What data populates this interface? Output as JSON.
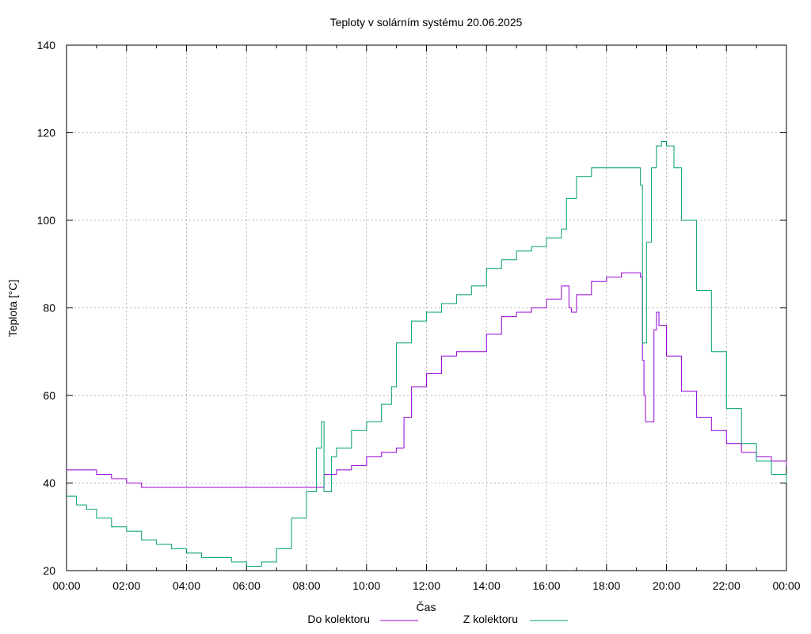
{
  "colors": {
    "series_do": "#9400d3",
    "series_z": "#009e73",
    "grid": "#a0a0a0",
    "axes": "#000000"
  },
  "chart_data": {
    "type": "line",
    "title": "Teploty v solárním systému 20.06.2025",
    "xlabel": "Čas",
    "ylabel": "Teplota [°C]",
    "xlim": [
      "00:00",
      "24:00"
    ],
    "ylim": [
      20,
      140
    ],
    "x_ticks": [
      "00:00",
      "02:00",
      "04:00",
      "06:00",
      "08:00",
      "10:00",
      "12:00",
      "14:00",
      "16:00",
      "18:00",
      "20:00",
      "22:00",
      "00:00"
    ],
    "y_ticks": [
      20,
      40,
      60,
      80,
      100,
      120,
      140
    ],
    "grid": true,
    "legend_position": "bottom-center",
    "series": [
      {
        "name": "Do kolektoru",
        "color": "#9400d3",
        "x": [
          "00:00",
          "00:30",
          "01:00",
          "01:30",
          "02:00",
          "02:20",
          "02:30",
          "03:00",
          "04:00",
          "05:00",
          "06:00",
          "07:00",
          "08:00",
          "08:30",
          "08:35",
          "09:00",
          "09:30",
          "10:00",
          "10:30",
          "11:00",
          "11:08",
          "11:15",
          "11:30",
          "12:00",
          "12:30",
          "13:00",
          "13:30",
          "14:00",
          "14:30",
          "15:00",
          "15:30",
          "16:00",
          "16:30",
          "16:45",
          "16:50",
          "17:00",
          "17:30",
          "18:00",
          "18:30",
          "19:00",
          "19:08",
          "19:12",
          "19:15",
          "19:18",
          "19:25",
          "19:35",
          "19:40",
          "19:45",
          "20:00",
          "20:30",
          "21:00",
          "21:30",
          "22:00",
          "22:30",
          "23:00",
          "23:30",
          "24:00"
        ],
        "y": [
          43,
          43,
          42,
          41,
          40,
          40,
          39,
          39,
          39,
          39,
          39,
          39,
          39,
          39,
          42,
          43,
          44,
          46,
          47,
          48,
          48,
          55,
          62,
          65,
          69,
          70,
          70,
          74,
          78,
          79,
          80,
          82,
          85,
          80,
          79,
          83,
          86,
          87,
          88,
          88,
          87,
          68,
          60,
          54,
          54,
          75,
          79,
          76,
          69,
          61,
          55,
          52,
          49,
          47,
          46,
          45,
          44
        ]
      },
      {
        "name": "Z kolektoru",
        "color": "#009e73",
        "x": [
          "00:00",
          "00:20",
          "00:40",
          "01:00",
          "01:30",
          "02:00",
          "02:30",
          "03:00",
          "03:30",
          "04:00",
          "04:30",
          "05:00",
          "05:30",
          "06:00",
          "06:15",
          "06:30",
          "07:00",
          "07:30",
          "08:00",
          "08:20",
          "08:30",
          "08:35",
          "08:50",
          "09:00",
          "09:30",
          "10:00",
          "10:30",
          "10:50",
          "11:00",
          "11:30",
          "12:00",
          "12:30",
          "13:00",
          "13:30",
          "14:00",
          "14:30",
          "15:00",
          "15:30",
          "16:00",
          "16:30",
          "16:40",
          "17:00",
          "17:30",
          "18:00",
          "18:30",
          "19:00",
          "19:08",
          "19:12",
          "19:20",
          "19:30",
          "19:40",
          "19:50",
          "20:00",
          "20:15",
          "20:30",
          "21:00",
          "21:30",
          "22:00",
          "22:30",
          "23:00",
          "23:30",
          "24:00"
        ],
        "y": [
          37,
          35,
          34,
          32,
          30,
          29,
          27,
          26,
          25,
          24,
          23,
          23,
          22,
          21,
          21,
          22,
          25,
          32,
          38,
          48,
          54,
          38,
          46,
          48,
          52,
          54,
          58,
          62,
          72,
          77,
          79,
          81,
          83,
          85,
          89,
          91,
          93,
          94,
          96,
          98,
          105,
          110,
          112,
          112,
          112,
          112,
          108,
          72,
          95,
          112,
          117,
          118,
          117,
          112,
          100,
          84,
          70,
          57,
          49,
          45,
          42,
          40
        ]
      }
    ]
  }
}
